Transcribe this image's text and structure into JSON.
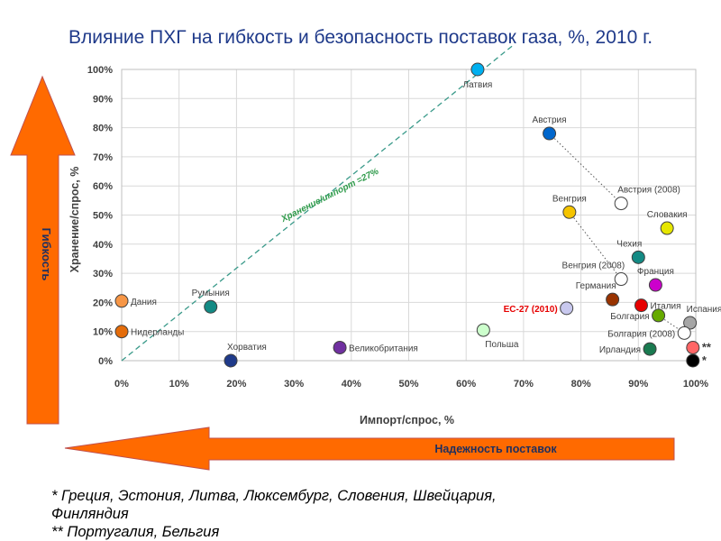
{
  "title": "Влияние ПХГ на гибкость и безопасность поставок газа, %, 2010 г.",
  "arrows": {
    "vertical_label": "Гибкость",
    "horizontal_label": "Надежность поставок",
    "color": "#ff6a00",
    "border_color": "#c0504d"
  },
  "footnotes": [
    "* Греция, Эстония, Литва, Люксембург, Словения, Швейцария,",
    "Финляндия",
    "** Португалия, Бельгия"
  ],
  "chart_data": {
    "type": "scatter",
    "xlabel": "Импорт/спрос, %",
    "ylabel": "Хранение/спрос, %",
    "xlim": [
      0,
      100
    ],
    "ylim": [
      0,
      100
    ],
    "x_ticks": [
      "0%",
      "10%",
      "20%",
      "30%",
      "40%",
      "50%",
      "60%",
      "70%",
      "80%",
      "90%",
      "100%"
    ],
    "y_ticks": [
      "0%",
      "10%",
      "20%",
      "30%",
      "40%",
      "50%",
      "60%",
      "70%",
      "80%",
      "90%",
      "100%"
    ],
    "grid": true,
    "reference_line": {
      "label": "Хранение/импорт =27%",
      "color": "#3a9a8a"
    },
    "points": [
      {
        "label": "Латвия",
        "x": 62,
        "y": 100,
        "color": "#00b0f0",
        "anchor": "below"
      },
      {
        "label": "Австрия",
        "x": 74.5,
        "y": 78,
        "color": "#0066cc",
        "anchor": "above"
      },
      {
        "label": "Австрия (2008)",
        "x": 87,
        "y": 54,
        "color": "#ffffff",
        "anchor": "above-right"
      },
      {
        "label": "Словакия",
        "x": 95,
        "y": 45.5,
        "color": "#e6e600",
        "anchor": "above"
      },
      {
        "label": "Венгрия",
        "x": 78,
        "y": 51,
        "color": "#f5c400",
        "anchor": "above"
      },
      {
        "label": "Чехия",
        "x": 90,
        "y": 35.5,
        "color": "#138a84",
        "anchor": "above-left"
      },
      {
        "label": "Венгрия (2008)",
        "x": 87,
        "y": 28,
        "color": "#ffffff",
        "anchor": "above-left"
      },
      {
        "label": "Франция",
        "x": 93,
        "y": 26,
        "color": "#cc00cc",
        "anchor": "above"
      },
      {
        "label": "Германия",
        "x": 85.5,
        "y": 21,
        "color": "#993300",
        "anchor": "above-left"
      },
      {
        "label": "Италия",
        "x": 90.5,
        "y": 19,
        "color": "#e60000",
        "anchor": "right"
      },
      {
        "label": "EC-27 (2010)",
        "x": 77.5,
        "y": 18,
        "color": "#c8c8ee",
        "anchor": "left",
        "label_color": "#e60000"
      },
      {
        "label": "Болгария",
        "x": 93.5,
        "y": 15.5,
        "color": "#66aa00",
        "anchor": "left"
      },
      {
        "label": "Испания",
        "x": 99,
        "y": 13,
        "color": "#a6a6a6",
        "anchor": "above-right"
      },
      {
        "label": "Болгария (2008)",
        "x": 98,
        "y": 9.5,
        "color": "#ffffff",
        "anchor": "left"
      },
      {
        "label": "Ирландия",
        "x": 92,
        "y": 4,
        "color": "#1a7a50",
        "anchor": "left"
      },
      {
        "label": "**",
        "x": 99.5,
        "y": 4.5,
        "color": "#ff6666",
        "anchor": "right"
      },
      {
        "label": "*",
        "x": 99.5,
        "y": 0,
        "color": "#000000",
        "anchor": "right"
      },
      {
        "label": "Польша",
        "x": 63,
        "y": 10.5,
        "color": "#ccffcc",
        "anchor": "below-right"
      },
      {
        "label": "Румыния",
        "x": 15.5,
        "y": 18.5,
        "color": "#138a84",
        "anchor": "above"
      },
      {
        "label": "Дания",
        "x": 0,
        "y": 20.5,
        "color": "#f79646",
        "anchor": "right"
      },
      {
        "label": "Нидерланды",
        "x": 0,
        "y": 10,
        "color": "#e46c0a",
        "anchor": "right"
      },
      {
        "label": "Хорватия",
        "x": 19,
        "y": 0,
        "color": "#1f3a8a",
        "anchor": "above-right"
      },
      {
        "label": "Великобритания",
        "x": 38,
        "y": 4.5,
        "color": "#7030a0",
        "anchor": "right"
      }
    ],
    "connectors": [
      {
        "from": "Австрия",
        "to": "Австрия (2008)"
      },
      {
        "from": "Венгрия",
        "to": "Венгрия (2008)"
      },
      {
        "from": "Болгария",
        "to": "Болгария (2008)"
      }
    ]
  }
}
